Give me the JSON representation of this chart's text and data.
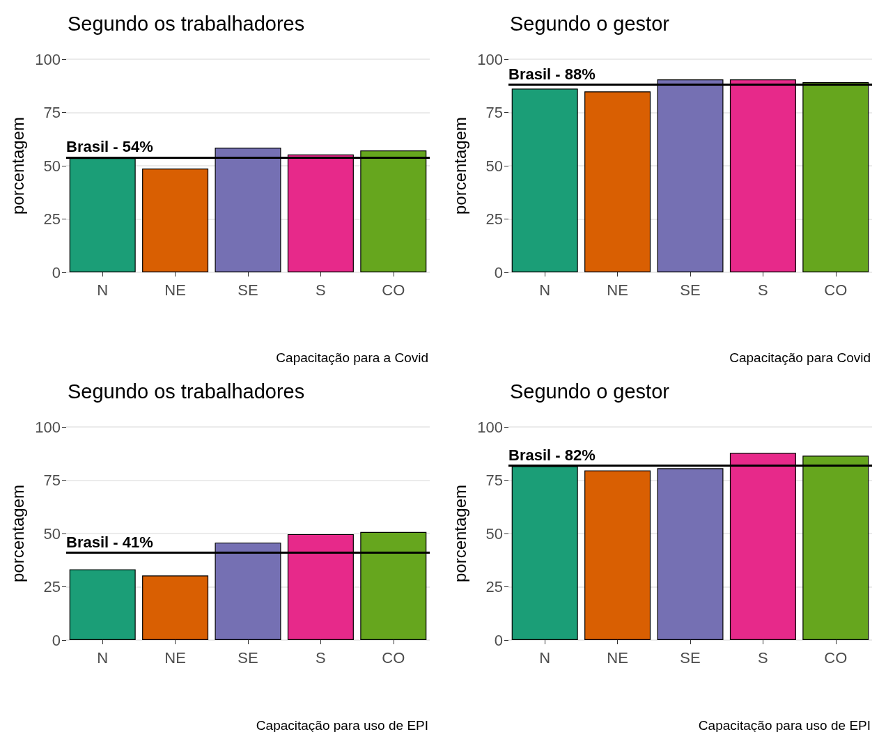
{
  "chart_data": [
    {
      "type": "bar",
      "title": "Segundo os trabalhadores",
      "ylabel": "porcentagem",
      "categories": [
        "N",
        "NE",
        "SE",
        "S",
        "CO"
      ],
      "values": [
        53.6,
        48.7,
        58.5,
        55.3,
        57.2
      ],
      "colors": [
        "#1b9e77",
        "#d95f02",
        "#7570b3",
        "#e7298a",
        "#66a61e"
      ],
      "ylim": [
        0,
        100
      ],
      "yticks": [
        0,
        25,
        50,
        75,
        100
      ],
      "grid": "y",
      "ref_lines": [
        {
          "axis": "y",
          "value": 54,
          "label": "Brasil - 54%",
          "color": "#000000"
        }
      ],
      "annotations": [
        "Capacitação para a Covid"
      ]
    },
    {
      "type": "bar",
      "title": "Segundo o gestor",
      "ylabel": "porcentagem",
      "categories": [
        "N",
        "NE",
        "SE",
        "S",
        "CO"
      ],
      "values": [
        86.2,
        84.9,
        90.5,
        90.5,
        89.2
      ],
      "colors": [
        "#1b9e77",
        "#d95f02",
        "#7570b3",
        "#e7298a",
        "#66a61e"
      ],
      "ylim": [
        0,
        100
      ],
      "yticks": [
        0,
        25,
        50,
        75,
        100
      ],
      "grid": "y",
      "ref_lines": [
        {
          "axis": "y",
          "value": 88,
          "label": "Brasil - 88%",
          "color": "#000000"
        }
      ],
      "annotations": [
        "Capacitação para Covid"
      ]
    },
    {
      "type": "bar",
      "title": "Segundo os trabalhadores",
      "ylabel": "porcentagem",
      "categories": [
        "N",
        "NE",
        "SE",
        "S",
        "CO"
      ],
      "values": [
        33.2,
        30.3,
        45.7,
        49.7,
        50.7
      ],
      "colors": [
        "#1b9e77",
        "#d95f02",
        "#7570b3",
        "#e7298a",
        "#66a61e"
      ],
      "ylim": [
        0,
        100
      ],
      "yticks": [
        0,
        25,
        50,
        75,
        100
      ],
      "grid": "y",
      "ref_lines": [
        {
          "axis": "y",
          "value": 41,
          "label": "Brasil - 41%",
          "color": "#000000"
        }
      ],
      "annotations": [
        "Capacitação para uso de EPI"
      ]
    },
    {
      "type": "bar",
      "title": "Segundo o gestor",
      "ylabel": "porcentagem",
      "categories": [
        "N",
        "NE",
        "SE",
        "S",
        "CO"
      ],
      "values": [
        81.6,
        79.6,
        80.6,
        87.8,
        86.5
      ],
      "colors": [
        "#1b9e77",
        "#d95f02",
        "#7570b3",
        "#e7298a",
        "#66a61e"
      ],
      "ylim": [
        0,
        100
      ],
      "yticks": [
        0,
        25,
        50,
        75,
        100
      ],
      "grid": "y",
      "ref_lines": [
        {
          "axis": "y",
          "value": 82,
          "label": "Brasil - 82%",
          "color": "#000000"
        }
      ],
      "annotations": [
        "Capacitação para uso de EPI"
      ]
    }
  ]
}
